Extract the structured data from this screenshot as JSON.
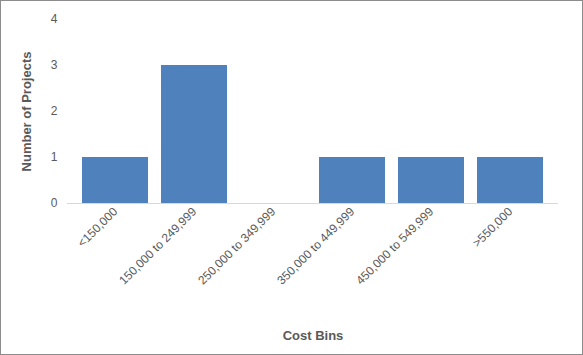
{
  "chart_data": {
    "type": "bar",
    "categories": [
      "<150,000",
      "150,000 to 249,999",
      "250,000 to 349,999",
      "350,000 to 449,999",
      "450,000 to 549,999",
      ">550,000"
    ],
    "values": [
      1,
      3,
      0,
      1,
      1,
      1
    ],
    "color": "#4f81bd",
    "xlabel": "Cost Bins",
    "ylabel": "Number of Projects",
    "ylim": [
      0,
      4
    ],
    "yticks": [
      0,
      1,
      2,
      3,
      4
    ],
    "grid": false
  }
}
